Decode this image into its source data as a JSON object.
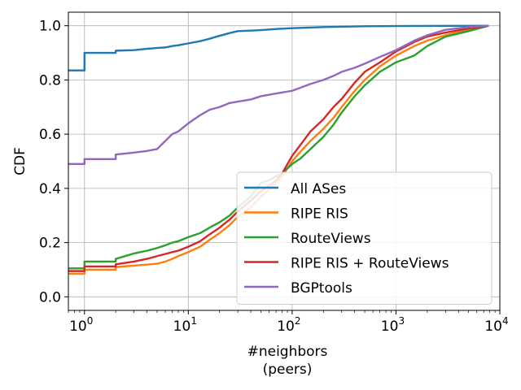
{
  "chart_data": {
    "type": "line",
    "xscale": "log",
    "xlim": [
      0.7,
      10000
    ],
    "ylim": [
      -0.05,
      1.05
    ],
    "xlabel": [
      "#neighbors",
      "(peers)"
    ],
    "ylabel": "CDF",
    "grid": true,
    "legend_placement": "lower-right",
    "yticks": [
      0.0,
      0.2,
      0.4,
      0.6,
      0.8,
      1.0
    ],
    "ytick_labels": [
      "0.0",
      "0.2",
      "0.4",
      "0.6",
      "0.8",
      "1.0"
    ],
    "xticks": [
      {
        "value": 1,
        "base": "10",
        "exp": "0"
      },
      {
        "value": 10,
        "base": "10",
        "exp": "1"
      },
      {
        "value": 100,
        "base": "10",
        "exp": "2"
      },
      {
        "value": 1000,
        "base": "10",
        "exp": "3"
      },
      {
        "value": 10000,
        "base": "10",
        "exp": "4"
      }
    ],
    "series": [
      {
        "name": "All ASes",
        "color": "#1f77b4",
        "points": [
          [
            0.7,
            0.835
          ],
          [
            1,
            0.835
          ],
          [
            1,
            0.9
          ],
          [
            2,
            0.9
          ],
          [
            2,
            0.908
          ],
          [
            3,
            0.91
          ],
          [
            4,
            0.915
          ],
          [
            5,
            0.918
          ],
          [
            6,
            0.92
          ],
          [
            7,
            0.925
          ],
          [
            8,
            0.928
          ],
          [
            10,
            0.935
          ],
          [
            13,
            0.943
          ],
          [
            16,
            0.952
          ],
          [
            20,
            0.963
          ],
          [
            25,
            0.973
          ],
          [
            30,
            0.98
          ],
          [
            40,
            0.982
          ],
          [
            50,
            0.984
          ],
          [
            70,
            0.988
          ],
          [
            100,
            0.991
          ],
          [
            200,
            0.995
          ],
          [
            500,
            0.998
          ],
          [
            1000,
            0.999
          ],
          [
            7800,
            1.0
          ]
        ]
      },
      {
        "name": "RIPE RIS",
        "color": "#ff7f0e",
        "points": [
          [
            0.7,
            0.085
          ],
          [
            1,
            0.085
          ],
          [
            1,
            0.1
          ],
          [
            2,
            0.1
          ],
          [
            2,
            0.11
          ],
          [
            3,
            0.115
          ],
          [
            5,
            0.122
          ],
          [
            6,
            0.13
          ],
          [
            7,
            0.14
          ],
          [
            8,
            0.15
          ],
          [
            10,
            0.165
          ],
          [
            13,
            0.185
          ],
          [
            16,
            0.21
          ],
          [
            20,
            0.235
          ],
          [
            25,
            0.265
          ],
          [
            30,
            0.295
          ],
          [
            40,
            0.33
          ],
          [
            50,
            0.37
          ],
          [
            60,
            0.395
          ],
          [
            70,
            0.42
          ],
          [
            80,
            0.445
          ],
          [
            100,
            0.5
          ],
          [
            120,
            0.535
          ],
          [
            150,
            0.575
          ],
          [
            200,
            0.62
          ],
          [
            250,
            0.66
          ],
          [
            300,
            0.7
          ],
          [
            400,
            0.76
          ],
          [
            500,
            0.8
          ],
          [
            700,
            0.85
          ],
          [
            1000,
            0.89
          ],
          [
            1500,
            0.925
          ],
          [
            2000,
            0.945
          ],
          [
            3000,
            0.965
          ],
          [
            5000,
            0.985
          ],
          [
            7800,
            1.0
          ]
        ]
      },
      {
        "name": "RouteViews",
        "color": "#2ca02c",
        "points": [
          [
            0.7,
            0.105
          ],
          [
            1,
            0.105
          ],
          [
            1,
            0.13
          ],
          [
            2,
            0.13
          ],
          [
            2,
            0.14
          ],
          [
            3,
            0.16
          ],
          [
            4,
            0.17
          ],
          [
            5,
            0.18
          ],
          [
            6,
            0.19
          ],
          [
            7,
            0.2
          ],
          [
            8,
            0.205
          ],
          [
            10,
            0.22
          ],
          [
            13,
            0.235
          ],
          [
            16,
            0.255
          ],
          [
            20,
            0.275
          ],
          [
            25,
            0.3
          ],
          [
            30,
            0.33
          ],
          [
            40,
            0.37
          ],
          [
            50,
            0.42
          ],
          [
            60,
            0.43
          ],
          [
            70,
            0.445
          ],
          [
            80,
            0.455
          ],
          [
            100,
            0.49
          ],
          [
            120,
            0.51
          ],
          [
            150,
            0.545
          ],
          [
            200,
            0.59
          ],
          [
            250,
            0.635
          ],
          [
            300,
            0.68
          ],
          [
            400,
            0.74
          ],
          [
            500,
            0.78
          ],
          [
            700,
            0.83
          ],
          [
            1000,
            0.865
          ],
          [
            1500,
            0.89
          ],
          [
            2000,
            0.925
          ],
          [
            3000,
            0.96
          ],
          [
            5000,
            0.98
          ],
          [
            7800,
            1.0
          ]
        ]
      },
      {
        "name": "RIPE RIS + RouteViews",
        "color": "#d62728",
        "points": [
          [
            0.7,
            0.095
          ],
          [
            1,
            0.095
          ],
          [
            1,
            0.112
          ],
          [
            2,
            0.112
          ],
          [
            2,
            0.12
          ],
          [
            3,
            0.13
          ],
          [
            4,
            0.14
          ],
          [
            5,
            0.15
          ],
          [
            6,
            0.158
          ],
          [
            7,
            0.165
          ],
          [
            8,
            0.17
          ],
          [
            10,
            0.185
          ],
          [
            13,
            0.205
          ],
          [
            16,
            0.23
          ],
          [
            20,
            0.255
          ],
          [
            25,
            0.285
          ],
          [
            30,
            0.315
          ],
          [
            40,
            0.355
          ],
          [
            50,
            0.39
          ],
          [
            60,
            0.41
          ],
          [
            70,
            0.43
          ],
          [
            80,
            0.455
          ],
          [
            100,
            0.52
          ],
          [
            120,
            0.56
          ],
          [
            150,
            0.61
          ],
          [
            200,
            0.655
          ],
          [
            250,
            0.7
          ],
          [
            300,
            0.73
          ],
          [
            400,
            0.79
          ],
          [
            500,
            0.83
          ],
          [
            700,
            0.865
          ],
          [
            1000,
            0.905
          ],
          [
            1500,
            0.94
          ],
          [
            2000,
            0.96
          ],
          [
            3000,
            0.975
          ],
          [
            5000,
            0.99
          ],
          [
            7800,
            1.0
          ]
        ]
      },
      {
        "name": "BGPtools",
        "color": "#9467bd",
        "points": [
          [
            0.7,
            0.49
          ],
          [
            1,
            0.49
          ],
          [
            1,
            0.508
          ],
          [
            2,
            0.508
          ],
          [
            2,
            0.525
          ],
          [
            3,
            0.532
          ],
          [
            4,
            0.538
          ],
          [
            5,
            0.545
          ],
          [
            6,
            0.575
          ],
          [
            7,
            0.6
          ],
          [
            8,
            0.61
          ],
          [
            10,
            0.64
          ],
          [
            13,
            0.67
          ],
          [
            16,
            0.69
          ],
          [
            20,
            0.7
          ],
          [
            25,
            0.715
          ],
          [
            30,
            0.72
          ],
          [
            40,
            0.728
          ],
          [
            50,
            0.74
          ],
          [
            70,
            0.75
          ],
          [
            100,
            0.76
          ],
          [
            150,
            0.785
          ],
          [
            200,
            0.8
          ],
          [
            250,
            0.815
          ],
          [
            300,
            0.83
          ],
          [
            400,
            0.845
          ],
          [
            500,
            0.86
          ],
          [
            700,
            0.885
          ],
          [
            1000,
            0.91
          ],
          [
            1500,
            0.945
          ],
          [
            2000,
            0.965
          ],
          [
            3000,
            0.985
          ],
          [
            5000,
            0.995
          ],
          [
            7800,
            1.0
          ]
        ]
      }
    ]
  }
}
